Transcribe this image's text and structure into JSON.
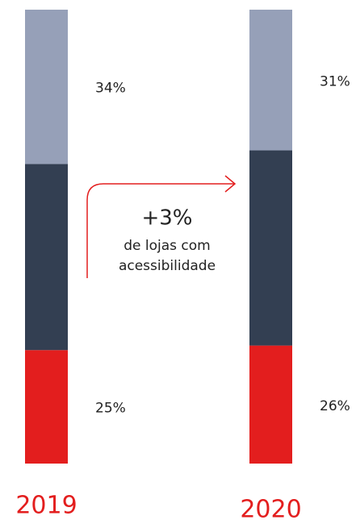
{
  "chart_data": {
    "type": "stacked-bar",
    "categories": [
      "2019",
      "2020"
    ],
    "series": [
      {
        "color": "#e31e1e",
        "values": [
          25,
          26
        ],
        "value_labels": [
          "25%",
          "26%"
        ]
      },
      {
        "color": "#333f52",
        "values": [
          41,
          43
        ]
      },
      {
        "color": "#96a0b8",
        "values": [
          34,
          31
        ],
        "value_labels": [
          "34%",
          "31%"
        ]
      }
    ],
    "ylim": [
      0,
      100
    ],
    "category_color": "#e31e1e",
    "annotation": {
      "headline": "+3%",
      "lines": [
        "de lojas com",
        "acessibilidade"
      ]
    }
  }
}
